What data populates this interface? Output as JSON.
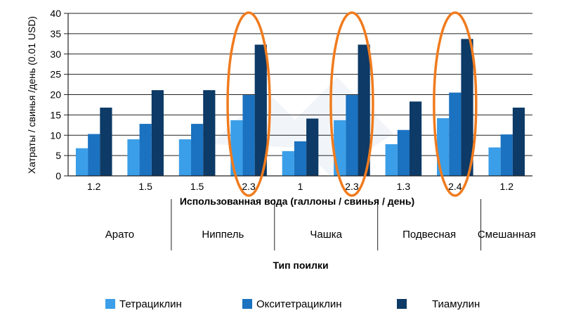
{
  "chart_data": {
    "type": "bar",
    "ylabel": "Хатраты / свинья /день (0.01 USD)",
    "xlabel": "Использованная вода (галлоны / свинья / день)",
    "group_axis_title": "Тип поилки",
    "ylim": [
      0,
      40
    ],
    "yticks": [
      0,
      5,
      10,
      15,
      20,
      25,
      30,
      35,
      40
    ],
    "grid": true,
    "legend_position": "bottom",
    "categories": [
      "1.2",
      "1.5",
      "1.5",
      "2.3",
      "1",
      "2.3",
      "1.3",
      "2.4",
      "1.2"
    ],
    "groups": [
      {
        "label": "Арато",
        "categories": [
          "1.2",
          "1.5"
        ]
      },
      {
        "label": "Ниппель",
        "categories": [
          "1.5",
          "2.3"
        ]
      },
      {
        "label": "Чашка",
        "categories": [
          "1",
          "2.3"
        ]
      },
      {
        "label": "Подвесная",
        "categories": [
          "1.3",
          "2.4"
        ]
      },
      {
        "label": "Смешанная",
        "categories": [
          "1.2"
        ]
      }
    ],
    "series": [
      {
        "name": "Тетрациклин",
        "color": "#3b9ee8",
        "values": [
          6.8,
          9.0,
          9.0,
          13.7,
          6.1,
          13.7,
          7.8,
          14.2,
          7.0
        ]
      },
      {
        "name": "Окситетрациклин",
        "color": "#1a72c0",
        "values": [
          10.3,
          12.8,
          12.8,
          19.9,
          8.5,
          19.9,
          11.3,
          20.5,
          10.2
        ]
      },
      {
        "name": "Тиамулин",
        "color": "#0d3a66",
        "values": [
          16.8,
          21.1,
          21.1,
          32.3,
          14.1,
          32.3,
          18.3,
          33.7,
          16.8
        ]
      }
    ],
    "highlighted_categories": [
      "2.3",
      "2.3",
      "2.4"
    ],
    "highlight_color": "#f07b1e"
  }
}
